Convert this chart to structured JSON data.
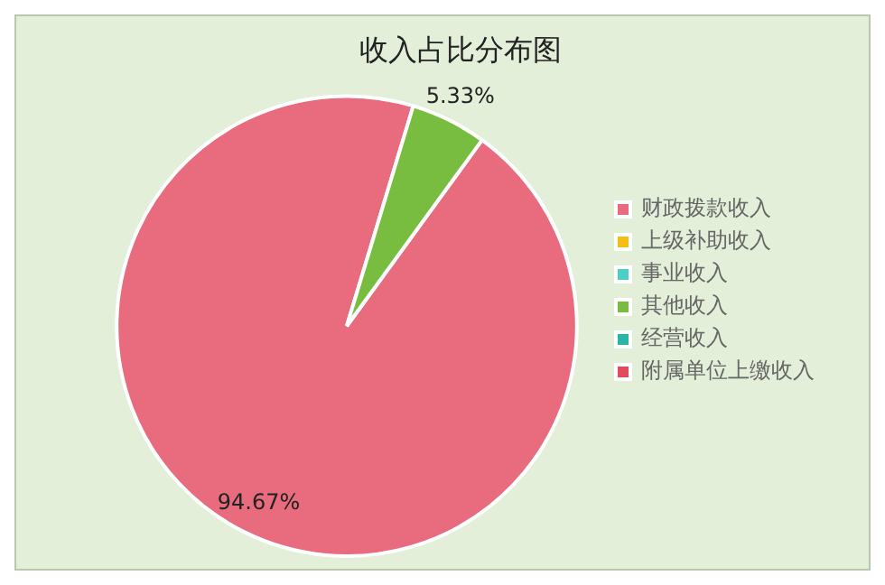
{
  "chart_data": {
    "type": "pie",
    "title": "收入占比分布图",
    "categories": [
      "财政拨款收入",
      "上级补助收入",
      "事业收入",
      "其他收入",
      "经营收入",
      "附属单位上缴收入"
    ],
    "values": [
      94.67,
      0,
      0,
      5.33,
      0,
      0
    ],
    "colors": [
      "#e96b7e",
      "#f6bd16",
      "#4fcdc9",
      "#78bd40",
      "#2bb5a8",
      "#e34b5c"
    ],
    "value_labels": [
      "94.67%",
      null,
      null,
      "5.33%",
      null,
      null
    ],
    "legend": "right"
  }
}
